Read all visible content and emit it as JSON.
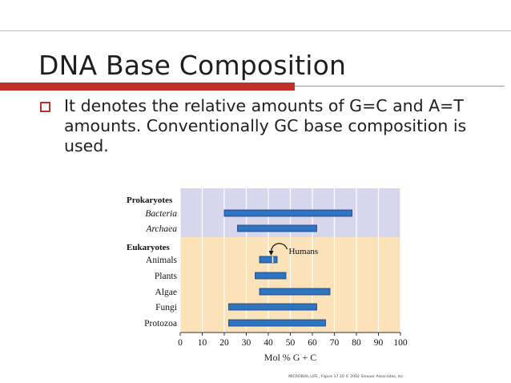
{
  "slide": {
    "title": "DNA Base Composition",
    "bullet": "It denotes the relative amounts of G=C and A=T amounts. Conventionally GC base composition is used."
  },
  "colors": {
    "title_bar": "#c0302a",
    "bullet": "#c0302a",
    "prokaryote_band": "#d8d6ec",
    "eukaryote_band": "#fbe2b8",
    "bar_fill": "#2f74c0",
    "bar_stroke": "#1b3f78"
  },
  "chart_data": {
    "type": "bar",
    "orientation": "horizontal-range",
    "groups": [
      "Prokaryotes",
      "Eukaryotes"
    ],
    "categories": [
      "Bacteria",
      "Archaea",
      "Animals",
      "Plants",
      "Algae",
      "Fungi",
      "Protozoa"
    ],
    "category_group": [
      "Prokaryotes",
      "Prokaryotes",
      "Eukaryotes",
      "Eukaryotes",
      "Eukaryotes",
      "Eukaryotes",
      "Eukaryotes"
    ],
    "ranges": [
      [
        20,
        78
      ],
      [
        26,
        62
      ],
      [
        36,
        44
      ],
      [
        34,
        48
      ],
      [
        36,
        68
      ],
      [
        22,
        62
      ],
      [
        22,
        66
      ]
    ],
    "xlabel": "Mol % G + C",
    "xlim": [
      0,
      100
    ],
    "xticks": [
      0,
      10,
      20,
      30,
      40,
      50,
      60,
      70,
      80,
      90,
      100
    ],
    "grid": true,
    "annotation": {
      "text": "Humans",
      "value": 42,
      "category": "Animals"
    },
    "credit": "MICROBIAL LIFE , Figure 17.10  © 2002 Sinauer Associates, Inc."
  }
}
